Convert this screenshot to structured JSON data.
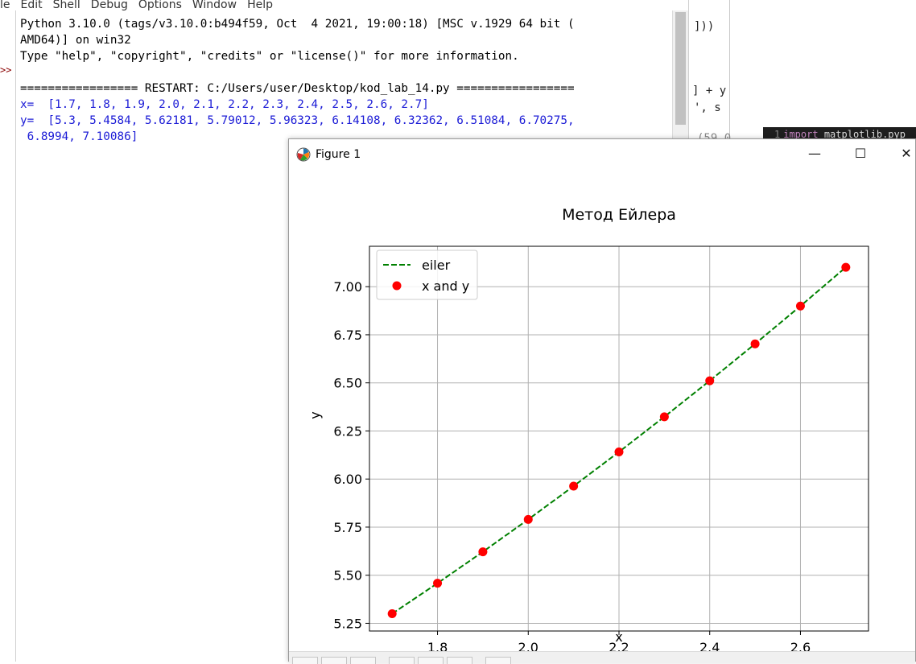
{
  "idle": {
    "menu": [
      "le",
      "Edit",
      "Shell",
      "Debug",
      "Options",
      "Window",
      "Help"
    ],
    "prompt_mark": ">>",
    "lines": [
      {
        "text": "Python 3.10.0 (tags/v3.10.0:b494f59, Oct  4 2021, 19:00:18) [MSC v.1929 64 bit (",
        "color": "black"
      },
      {
        "text": "AMD64)] on win32",
        "color": "black"
      },
      {
        "text": "Type \"help\", \"copyright\", \"credits\" or \"license()\" for more information.",
        "color": "black"
      },
      {
        "text": "",
        "color": "black"
      },
      {
        "text": "================= RESTART: C:/Users/user/Desktop/kod_lab_14.py =================",
        "color": "black"
      },
      {
        "text": "x=  [1.7, 1.8, 1.9, 2.0, 2.1, 2.2, 2.3, 2.4, 2.5, 2.6, 2.7]",
        "color": "blue"
      },
      {
        "text": "y=  [5.3, 5.4584, 5.62181, 5.79012, 5.96323, 6.14108, 6.32362, 6.51084, 6.70275,",
        "color": "blue"
      },
      {
        "text": " 6.8994, 7.10086]",
        "color": "blue"
      }
    ]
  },
  "bg_editor": {
    "line_a": "]))",
    "line_b": "] + y",
    "line_c": "', s",
    "line_d": "(59,0",
    "dark_line_number": "1",
    "dark_keyword": "import",
    "dark_rest": " matplotlib.pyp"
  },
  "figure": {
    "window_title": "Figure 1",
    "minimize_glyph": "—",
    "maximize_glyph": "☐",
    "close_glyph": "✕",
    "icons": {
      "app": "matplotlib-icon"
    }
  },
  "chart_data": {
    "type": "line",
    "title": "Метод Ейлера",
    "xlabel": "x",
    "ylabel": "y",
    "x": [
      1.7,
      1.8,
      1.9,
      2.0,
      2.1,
      2.2,
      2.3,
      2.4,
      2.5,
      2.6,
      2.7
    ],
    "series": [
      {
        "name": "eiler",
        "style": "dashed-line",
        "color": "#008000",
        "values": [
          5.3,
          5.4584,
          5.62181,
          5.79012,
          5.96323,
          6.14108,
          6.32362,
          6.51084,
          6.70275,
          6.8994,
          7.10086
        ]
      },
      {
        "name": "x and y",
        "style": "markers",
        "color": "#ff0000",
        "values": [
          5.3,
          5.4584,
          5.62181,
          5.79012,
          5.96323,
          6.14108,
          6.32362,
          6.51084,
          6.70275,
          6.8994,
          7.10086
        ]
      }
    ],
    "xlim": [
      1.65,
      2.75
    ],
    "ylim": [
      5.21,
      7.21
    ],
    "xticks": [
      "1.8",
      "2.0",
      "2.2",
      "2.4",
      "2.6"
    ],
    "yticks": [
      "5.25",
      "5.50",
      "5.75",
      "6.00",
      "6.25",
      "6.50",
      "6.75",
      "7.00"
    ],
    "grid": true,
    "legend_position": "top-left"
  }
}
